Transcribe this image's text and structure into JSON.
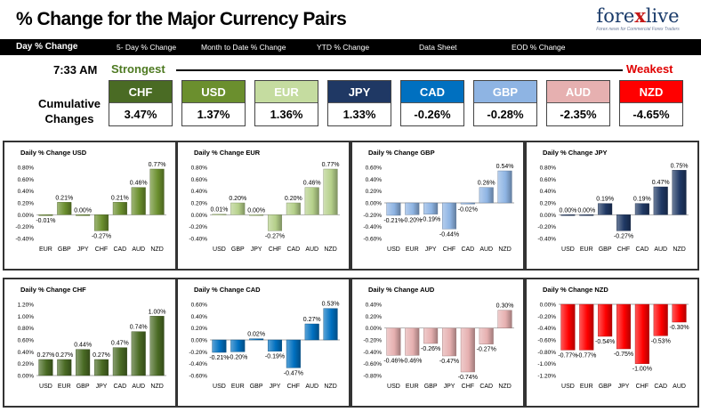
{
  "header": {
    "title": "% Change for the Major Currency Pairs",
    "logo_text_a": "fore",
    "logo_text_b": "x",
    "logo_text_c": "live",
    "logo_tagline": "Forex news for Commercial Forex Traders"
  },
  "tabs": [
    {
      "label": "Day % Change",
      "active": true
    },
    {
      "label": "5- Day % Change",
      "active": false
    },
    {
      "label": "Month to Date % Change",
      "active": false
    },
    {
      "label": "YTD % Change",
      "active": false
    },
    {
      "label": "Data Sheet",
      "active": false
    },
    {
      "label": "EOD % Change",
      "active": false
    }
  ],
  "summary": {
    "time": "7:33 AM",
    "strongest": "Strongest",
    "weakest": "Weakest",
    "cumulative_label": "Cumulative Changes",
    "currencies": [
      {
        "code": "CHF",
        "value": "3.47%",
        "color": "#4a6b24"
      },
      {
        "code": "USD",
        "value": "1.37%",
        "color": "#6b8f2e"
      },
      {
        "code": "EUR",
        "value": "1.36%",
        "color": "#c5dca0"
      },
      {
        "code": "JPY",
        "value": "1.33%",
        "color": "#1f3864"
      },
      {
        "code": "CAD",
        "value": "-0.26%",
        "color": "#0070c0"
      },
      {
        "code": "GBP",
        "value": "-0.28%",
        "color": "#8eb4e3"
      },
      {
        "code": "AUD",
        "value": "-2.35%",
        "color": "#e6b0b0"
      },
      {
        "code": "NZD",
        "value": "-4.65%",
        "color": "#ff0000"
      }
    ]
  },
  "chart_data": [
    {
      "type": "bar",
      "title": "Daily % Change USD",
      "categories": [
        "EUR",
        "GBP",
        "JPY",
        "CHF",
        "CAD",
        "AUD",
        "NZD"
      ],
      "values": [
        -0.01,
        0.21,
        0.0,
        -0.27,
        0.21,
        0.46,
        0.77
      ],
      "labels": [
        "-0.01%",
        "0.21%",
        "0.00%",
        "-0.27%",
        "0.21%",
        "0.46%",
        "0.77%"
      ],
      "yticks": [
        "0.80%",
        "0.60%",
        "0.40%",
        "0.20%",
        "0.00%",
        "-0.20%",
        "-0.40%"
      ],
      "ylim": [
        -0.4,
        0.8
      ],
      "color": "#6b8f2e"
    },
    {
      "type": "bar",
      "title": "Daily % Change EUR",
      "categories": [
        "USD",
        "GBP",
        "JPY",
        "CHF",
        "CAD",
        "AUD",
        "NZD"
      ],
      "values": [
        0.01,
        0.2,
        0.0,
        -0.27,
        0.2,
        0.46,
        0.77
      ],
      "labels": [
        "0.01%",
        "0.20%",
        "0.00%",
        "-0.27%",
        "0.20%",
        "0.46%",
        "0.77%"
      ],
      "yticks": [
        "0.80%",
        "0.60%",
        "0.40%",
        "0.20%",
        "0.00%",
        "-0.20%",
        "-0.40%"
      ],
      "ylim": [
        -0.4,
        0.8
      ],
      "color": "#b5d08a"
    },
    {
      "type": "bar",
      "title": "Daily % Change GBP",
      "categories": [
        "USD",
        "EUR",
        "JPY",
        "CHF",
        "CAD",
        "AUD",
        "NZD"
      ],
      "values": [
        -0.21,
        -0.2,
        -0.19,
        -0.44,
        -0.02,
        0.26,
        0.54
      ],
      "labels": [
        "-0.21%",
        "-0.20%",
        "-0.19%",
        "-0.44%",
        "-0.02%",
        "0.26%",
        "0.54%"
      ],
      "yticks": [
        "0.60%",
        "0.40%",
        "0.20%",
        "0.00%",
        "-0.20%",
        "-0.40%",
        "-0.60%"
      ],
      "ylim": [
        -0.6,
        0.6
      ],
      "color": "#8eb4e3"
    },
    {
      "type": "bar",
      "title": "Daily % Change JPY",
      "categories": [
        "USD",
        "EUR",
        "GBP",
        "CHF",
        "CAD",
        "AUD",
        "NZD"
      ],
      "values": [
        0.0,
        0.0,
        0.19,
        -0.27,
        0.19,
        0.47,
        0.75
      ],
      "labels": [
        "0.00%",
        "0.00%",
        "0.19%",
        "-0.27%",
        "0.19%",
        "0.47%",
        "0.75%"
      ],
      "yticks": [
        "0.80%",
        "0.60%",
        "0.40%",
        "0.20%",
        "0.00%",
        "-0.20%",
        "-0.40%"
      ],
      "ylim": [
        -0.4,
        0.8
      ],
      "color": "#1f3864"
    },
    {
      "type": "bar",
      "title": "Daily % Change CHF",
      "categories": [
        "USD",
        "EUR",
        "GBP",
        "JPY",
        "CAD",
        "AUD",
        "NZD"
      ],
      "values": [
        0.27,
        0.27,
        0.44,
        0.27,
        0.47,
        0.74,
        1.0
      ],
      "labels": [
        "0.27%",
        "0.27%",
        "0.44%",
        "0.27%",
        "0.47%",
        "0.74%",
        "1.00%"
      ],
      "yticks": [
        "1.20%",
        "1.00%",
        "0.80%",
        "0.60%",
        "0.40%",
        "0.20%",
        "0.00%"
      ],
      "ylim": [
        0,
        1.2
      ],
      "color": "#4a6b24"
    },
    {
      "type": "bar",
      "title": "Daily % Change CAD",
      "categories": [
        "USD",
        "EUR",
        "GBP",
        "JPY",
        "CHF",
        "AUD",
        "NZD"
      ],
      "values": [
        -0.21,
        -0.2,
        0.02,
        -0.19,
        -0.47,
        0.27,
        0.53
      ],
      "labels": [
        "-0.21%",
        "-0.20%",
        "0.02%",
        "-0.19%",
        "-0.47%",
        "0.27%",
        "0.53%"
      ],
      "yticks": [
        "0.60%",
        "0.40%",
        "0.20%",
        "0.00%",
        "-0.20%",
        "-0.40%",
        "-0.60%"
      ],
      "ylim": [
        -0.6,
        0.6
      ],
      "color": "#0070c0"
    },
    {
      "type": "bar",
      "title": "Daily % Change AUD",
      "categories": [
        "USD",
        "EUR",
        "GBP",
        "JPY",
        "CHF",
        "CAD",
        "NZD"
      ],
      "values": [
        -0.46,
        -0.46,
        -0.26,
        -0.47,
        -0.74,
        -0.27,
        0.3
      ],
      "labels": [
        "-0.46%",
        "-0.46%",
        "-0.26%",
        "-0.47%",
        "-0.74%",
        "-0.27%",
        "0.30%"
      ],
      "yticks": [
        "0.40%",
        "0.20%",
        "0.00%",
        "-0.20%",
        "-0.40%",
        "-0.60%",
        "-0.80%"
      ],
      "ylim": [
        -0.8,
        0.4
      ],
      "color": "#e6b0b0"
    },
    {
      "type": "bar",
      "title": "Daily % Change NZD",
      "categories": [
        "USD",
        "EUR",
        "GBP",
        "JPY",
        "CHF",
        "CAD",
        "AUD"
      ],
      "values": [
        -0.77,
        -0.77,
        -0.54,
        -0.75,
        -1.0,
        -0.53,
        -0.3
      ],
      "labels": [
        "-0.77%",
        "-0.77%",
        "-0.54%",
        "-0.75%",
        "-1.00%",
        "-0.53%",
        "-0.30%"
      ],
      "yticks": [
        "0.00%",
        "-0.20%",
        "-0.40%",
        "-0.60%",
        "-0.80%",
        "-1.00%",
        "-1.20%"
      ],
      "ylim": [
        -1.2,
        0
      ],
      "color": "#ff0000"
    }
  ]
}
